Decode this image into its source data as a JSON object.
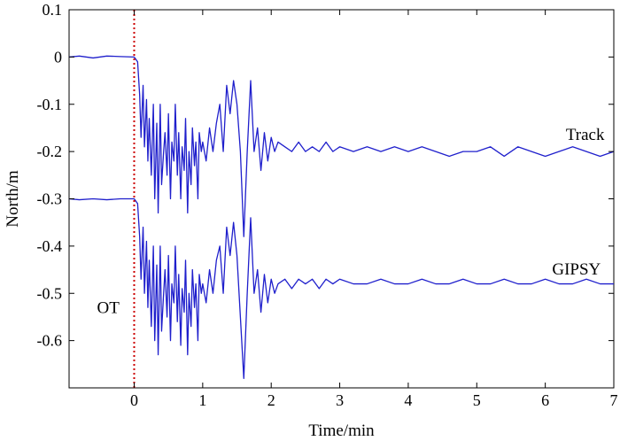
{
  "chart_data": {
    "type": "line",
    "title": "",
    "xlabel": "Time/min",
    "ylabel": "North/m",
    "xlim": [
      -0.95,
      7
    ],
    "ylim": [
      -0.7,
      0.1
    ],
    "x_ticks": [
      0,
      1,
      2,
      3,
      4,
      5,
      6,
      7
    ],
    "x_tick_labels": [
      "0",
      "1",
      "2",
      "3",
      "4",
      "5",
      "6",
      "7"
    ],
    "y_ticks": [
      0.1,
      0,
      -0.1,
      -0.2,
      -0.3,
      -0.4,
      -0.5,
      -0.6
    ],
    "y_tick_labels": [
      "0.1",
      "0",
      "-0.1",
      "-0.2",
      "-0.3",
      "-0.4",
      "-0.5",
      "-0.6"
    ],
    "grid": false,
    "line_color": "#1f1fcc",
    "ot_line": {
      "x": 0,
      "label": "OT",
      "color": "#cc0000"
    },
    "series": [
      {
        "name": "Track",
        "label_at": [
          6.3,
          -0.175
        ],
        "x": [
          -0.95,
          -0.8,
          -0.6,
          -0.4,
          -0.2,
          0,
          0.05,
          0.08,
          0.1,
          0.13,
          0.15,
          0.18,
          0.2,
          0.22,
          0.25,
          0.28,
          0.3,
          0.33,
          0.35,
          0.38,
          0.4,
          0.43,
          0.45,
          0.48,
          0.5,
          0.53,
          0.55,
          0.58,
          0.6,
          0.63,
          0.65,
          0.68,
          0.7,
          0.73,
          0.75,
          0.78,
          0.8,
          0.83,
          0.85,
          0.88,
          0.9,
          0.93,
          0.95,
          0.98,
          1.0,
          1.05,
          1.1,
          1.15,
          1.2,
          1.25,
          1.3,
          1.35,
          1.4,
          1.45,
          1.5,
          1.55,
          1.6,
          1.65,
          1.7,
          1.75,
          1.8,
          1.85,
          1.9,
          1.95,
          2.0,
          2.05,
          2.1,
          2.2,
          2.3,
          2.4,
          2.5,
          2.6,
          2.7,
          2.8,
          2.9,
          3.0,
          3.2,
          3.4,
          3.6,
          3.8,
          4.0,
          4.2,
          4.4,
          4.6,
          4.8,
          5.0,
          5.2,
          5.4,
          5.6,
          5.8,
          6.0,
          6.2,
          6.4,
          6.6,
          6.8,
          7.0
        ],
        "y": [
          0.0,
          0.002,
          -0.002,
          0.002,
          0.001,
          0.0,
          -0.01,
          -0.08,
          -0.17,
          -0.06,
          -0.19,
          -0.09,
          -0.22,
          -0.13,
          -0.25,
          -0.1,
          -0.3,
          -0.14,
          -0.33,
          -0.1,
          -0.27,
          -0.2,
          -0.16,
          -0.25,
          -0.12,
          -0.3,
          -0.18,
          -0.22,
          -0.1,
          -0.25,
          -0.16,
          -0.3,
          -0.19,
          -0.24,
          -0.13,
          -0.33,
          -0.2,
          -0.27,
          -0.15,
          -0.23,
          -0.18,
          -0.3,
          -0.16,
          -0.2,
          -0.18,
          -0.22,
          -0.15,
          -0.2,
          -0.14,
          -0.1,
          -0.2,
          -0.06,
          -0.12,
          -0.05,
          -0.1,
          -0.2,
          -0.38,
          -0.2,
          -0.05,
          -0.2,
          -0.15,
          -0.24,
          -0.16,
          -0.22,
          -0.17,
          -0.2,
          -0.18,
          -0.19,
          -0.2,
          -0.18,
          -0.2,
          -0.19,
          -0.2,
          -0.18,
          -0.2,
          -0.19,
          -0.2,
          -0.19,
          -0.2,
          -0.19,
          -0.2,
          -0.19,
          -0.2,
          -0.21,
          -0.2,
          -0.2,
          -0.19,
          -0.21,
          -0.19,
          -0.2,
          -0.21,
          -0.2,
          -0.19,
          -0.2,
          -0.21,
          -0.2
        ]
      },
      {
        "name": "GIPSY",
        "label_at": [
          6.1,
          -0.46
        ],
        "x": [
          -0.95,
          -0.8,
          -0.6,
          -0.4,
          -0.2,
          0,
          0.05,
          0.08,
          0.1,
          0.13,
          0.15,
          0.18,
          0.2,
          0.22,
          0.25,
          0.28,
          0.3,
          0.33,
          0.35,
          0.38,
          0.4,
          0.43,
          0.45,
          0.48,
          0.5,
          0.53,
          0.55,
          0.58,
          0.6,
          0.63,
          0.65,
          0.68,
          0.7,
          0.73,
          0.75,
          0.78,
          0.8,
          0.83,
          0.85,
          0.88,
          0.9,
          0.93,
          0.95,
          0.98,
          1.0,
          1.05,
          1.1,
          1.15,
          1.2,
          1.25,
          1.3,
          1.35,
          1.4,
          1.45,
          1.5,
          1.55,
          1.6,
          1.65,
          1.7,
          1.75,
          1.8,
          1.85,
          1.9,
          1.95,
          2.0,
          2.05,
          2.1,
          2.2,
          2.3,
          2.4,
          2.5,
          2.6,
          2.7,
          2.8,
          2.9,
          3.0,
          3.2,
          3.4,
          3.6,
          3.8,
          4.0,
          4.2,
          4.4,
          4.6,
          4.8,
          5.0,
          5.2,
          5.4,
          5.6,
          5.8,
          6.0,
          6.2,
          6.4,
          6.6,
          6.8,
          7.0
        ],
        "y": [
          -0.3,
          -0.302,
          -0.3,
          -0.302,
          -0.3,
          -0.3,
          -0.31,
          -0.38,
          -0.47,
          -0.36,
          -0.5,
          -0.39,
          -0.53,
          -0.43,
          -0.57,
          -0.4,
          -0.6,
          -0.44,
          -0.63,
          -0.4,
          -0.58,
          -0.5,
          -0.45,
          -0.55,
          -0.42,
          -0.6,
          -0.48,
          -0.52,
          -0.4,
          -0.56,
          -0.46,
          -0.61,
          -0.49,
          -0.54,
          -0.43,
          -0.63,
          -0.5,
          -0.57,
          -0.45,
          -0.53,
          -0.48,
          -0.6,
          -0.46,
          -0.5,
          -0.48,
          -0.52,
          -0.45,
          -0.5,
          -0.43,
          -0.4,
          -0.5,
          -0.36,
          -0.42,
          -0.35,
          -0.42,
          -0.55,
          -0.68,
          -0.5,
          -0.34,
          -0.5,
          -0.45,
          -0.54,
          -0.46,
          -0.52,
          -0.47,
          -0.5,
          -0.48,
          -0.47,
          -0.49,
          -0.47,
          -0.48,
          -0.47,
          -0.49,
          -0.47,
          -0.48,
          -0.47,
          -0.48,
          -0.48,
          -0.47,
          -0.48,
          -0.48,
          -0.47,
          -0.48,
          -0.48,
          -0.47,
          -0.48,
          -0.48,
          -0.47,
          -0.48,
          -0.48,
          -0.47,
          -0.48,
          -0.48,
          -0.47,
          -0.48,
          -0.48
        ]
      }
    ]
  }
}
